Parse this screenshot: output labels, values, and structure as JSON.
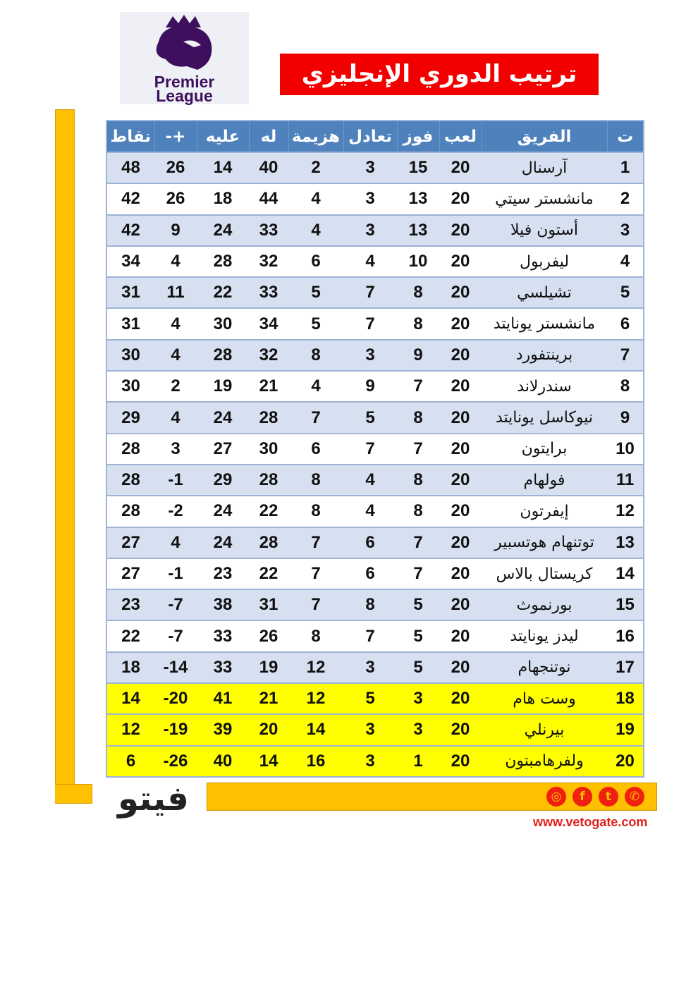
{
  "logo": {
    "line1": "Premier",
    "line2": "League"
  },
  "title": "ترتيب الدوري الإنجليزي",
  "headers": [
    "ت",
    "الفريق",
    "لعب",
    "فوز",
    "تعادل",
    "هزيمة",
    "له",
    "عليه",
    "+-",
    "نقاط"
  ],
  "rows": [
    [
      "1",
      "آرسنال",
      "20",
      "15",
      "3",
      "2",
      "40",
      "14",
      "26",
      "48"
    ],
    [
      "2",
      "مانشستر سيتي",
      "20",
      "13",
      "3",
      "4",
      "44",
      "18",
      "26",
      "42"
    ],
    [
      "3",
      "أستون فيلا",
      "20",
      "13",
      "3",
      "4",
      "33",
      "24",
      "9",
      "42"
    ],
    [
      "4",
      "ليفربول",
      "20",
      "10",
      "4",
      "6",
      "32",
      "28",
      "4",
      "34"
    ],
    [
      "5",
      "تشيلسي",
      "20",
      "8",
      "7",
      "5",
      "33",
      "22",
      "11",
      "31"
    ],
    [
      "6",
      "مانشستر يونايتد",
      "20",
      "8",
      "7",
      "5",
      "34",
      "30",
      "4",
      "31"
    ],
    [
      "7",
      "برينتفورد",
      "20",
      "9",
      "3",
      "8",
      "32",
      "28",
      "4",
      "30"
    ],
    [
      "8",
      "سندرلاند",
      "20",
      "7",
      "9",
      "4",
      "21",
      "19",
      "2",
      "30"
    ],
    [
      "9",
      "نيوكاسل يونايتد",
      "20",
      "8",
      "5",
      "7",
      "28",
      "24",
      "4",
      "29"
    ],
    [
      "10",
      "برايتون",
      "20",
      "7",
      "7",
      "6",
      "30",
      "27",
      "3",
      "28"
    ],
    [
      "11",
      "فولهام",
      "20",
      "8",
      "4",
      "8",
      "28",
      "29",
      "-1",
      "28"
    ],
    [
      "12",
      "إيفرتون",
      "20",
      "8",
      "4",
      "8",
      "22",
      "24",
      "-2",
      "28"
    ],
    [
      "13",
      "توتنهام هوتسبير",
      "20",
      "7",
      "6",
      "7",
      "28",
      "24",
      "4",
      "27"
    ],
    [
      "14",
      "كريستال بالاس",
      "20",
      "7",
      "6",
      "7",
      "22",
      "23",
      "-1",
      "27"
    ],
    [
      "15",
      "بورنموث",
      "20",
      "5",
      "8",
      "7",
      "31",
      "38",
      "-7",
      "23"
    ],
    [
      "16",
      "ليدز يونايتد",
      "20",
      "5",
      "7",
      "8",
      "26",
      "33",
      "-7",
      "22"
    ],
    [
      "17",
      "نوتنجهام",
      "20",
      "5",
      "3",
      "12",
      "19",
      "33",
      "-14",
      "18"
    ],
    [
      "18",
      "وست هام",
      "20",
      "3",
      "5",
      "12",
      "21",
      "41",
      "-20",
      "14"
    ],
    [
      "19",
      "بيرنلي",
      "20",
      "3",
      "3",
      "14",
      "20",
      "39",
      "-19",
      "12"
    ],
    [
      "20",
      "ولفرهامبتون",
      "20",
      "1",
      "3",
      "16",
      "14",
      "40",
      "-26",
      "6"
    ]
  ],
  "relegation_rows": [
    18,
    19,
    20
  ],
  "colors": {
    "header": "#4f81bd",
    "row_alt": "#d6e0f0",
    "relegation": "#ffff00",
    "title_bg": "#f20000",
    "accent": "#ffc000"
  },
  "footer": {
    "brand": "فيتو",
    "url": "www.vetogate.com",
    "social_icons": [
      "instagram-icon",
      "facebook-icon",
      "twitter-icon",
      "whatsapp-icon"
    ]
  }
}
